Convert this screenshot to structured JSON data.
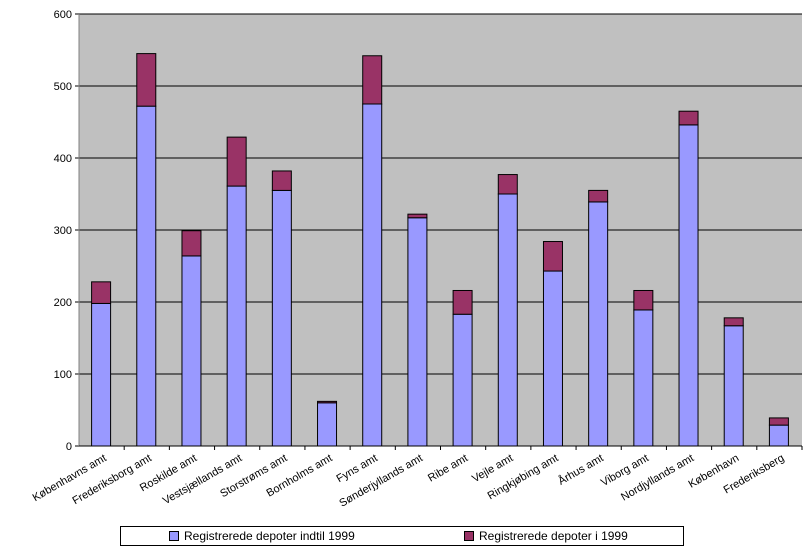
{
  "chart_data": {
    "type": "bar",
    "stacked": true,
    "title": "",
    "xlabel": "",
    "ylabel": "",
    "ylim": [
      0,
      600
    ],
    "yticks": [
      0,
      100,
      200,
      300,
      400,
      500,
      600
    ],
    "grid": true,
    "legend_position": "bottom",
    "categories": [
      "Københavns amt",
      "Frederiksborg amt",
      "Roskilde amt",
      "Vestsjællands amt",
      "Storstrøms amt",
      "Bornholms amt",
      "Fyns amt",
      "Sønderjyllands amt",
      "Ribe amt",
      "Vejle amt",
      "Ringkjøbing amt",
      "Århus amt",
      "Viborg amt",
      "Nordjyllands amt",
      "København",
      "Frederiksberg"
    ],
    "series": [
      {
        "name": "Registrerede depoter indtil 1999",
        "color": "#9999ff",
        "values": [
          198,
          472,
          264,
          361,
          355,
          60,
          475,
          317,
          183,
          350,
          243,
          339,
          189,
          446,
          167,
          29
        ]
      },
      {
        "name": "Registrerede depoter i 1999",
        "color": "#993366",
        "values": [
          30,
          73,
          35,
          68,
          27,
          2,
          67,
          5,
          33,
          27,
          41,
          16,
          27,
          19,
          11,
          10
        ]
      }
    ]
  }
}
